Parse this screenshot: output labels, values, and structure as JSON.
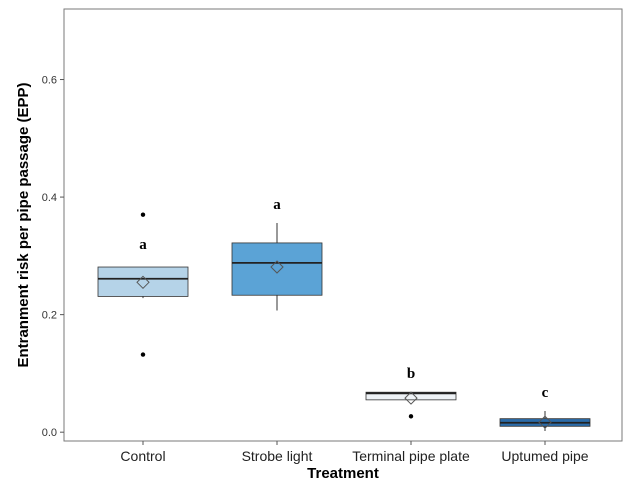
{
  "chart_data": {
    "type": "box",
    "xlabel": "Treatment",
    "ylabel": "Entranment risk per pipe passage (EPP)",
    "ylim": [
      -0.015,
      0.72
    ],
    "yticks": [
      "0.0",
      "0.2",
      "0.4",
      "0.6"
    ],
    "ytick_values": [
      0.0,
      0.2,
      0.4,
      0.6
    ],
    "grid": false,
    "categories": [
      "Control",
      "Strobe light",
      "Terminal pipe plate",
      "Uptumed pipe"
    ],
    "boxes": [
      {
        "category": "Control",
        "whisker_low": 0.228,
        "q1": 0.231,
        "median": 0.261,
        "q3": 0.281,
        "whisker_high": 0.281,
        "mean": 0.255,
        "outliers": [
          0.37,
          0.132
        ],
        "letter": "a",
        "color": "#b5d3e8"
      },
      {
        "category": "Strobe light",
        "whisker_low": 0.207,
        "q1": 0.233,
        "median": 0.288,
        "q3": 0.322,
        "whisker_high": 0.356,
        "mean": 0.281,
        "outliers": [],
        "letter": "a",
        "color": "#5ba3d6"
      },
      {
        "category": "Terminal pipe plate",
        "whisker_low": 0.055,
        "q1": 0.055,
        "median": 0.066,
        "q3": 0.068,
        "whisker_high": 0.068,
        "mean": 0.058,
        "outliers": [
          0.027
        ],
        "letter": "b",
        "color": "#eef2f6"
      },
      {
        "category": "Uptumed pipe",
        "whisker_low": 0.002,
        "q1": 0.01,
        "median": 0.016,
        "q3": 0.023,
        "whisker_high": 0.036,
        "mean": 0.017,
        "outliers": [],
        "letter": "c",
        "color": "#2b6ba8"
      }
    ]
  }
}
